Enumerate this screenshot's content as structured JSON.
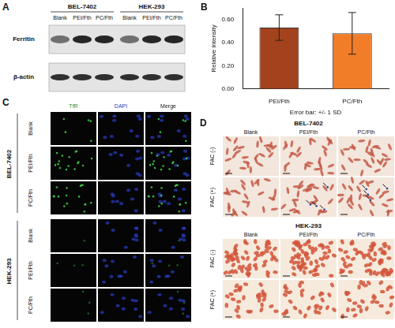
{
  "panels": {
    "A": {
      "label": "A",
      "cell_lines": [
        {
          "name": "BEL-7402",
          "lanes": [
            "Blank",
            "PEI/Fth",
            "PC/Fth"
          ]
        },
        {
          "name": "HEK-293",
          "lanes": [
            "Blank",
            "PEI/Fth",
            "PC/Fth"
          ]
        }
      ],
      "bands": [
        "Ferritin",
        "β-actin"
      ]
    },
    "B": {
      "label": "B"
    },
    "C": {
      "label": "C",
      "columns": [
        "TfR",
        "DAPI",
        "Merge"
      ],
      "groups": [
        {
          "name": "BEL-7402",
          "rows": [
            "Blank",
            "PEI/Fth",
            "PC/Fth"
          ]
        },
        {
          "name": "HEK-293",
          "rows": [
            "Blank",
            "PEI/Fth",
            "PC/Fth"
          ]
        }
      ]
    },
    "D": {
      "label": "D",
      "groups": [
        {
          "name": "BEL-7402",
          "columns": [
            "Blank",
            "PEI/Fth",
            "PC/Fth"
          ],
          "rows": [
            "FAC (-)",
            "FAC (+)"
          ]
        },
        {
          "name": "HEK-293",
          "columns": [
            "Blank",
            "PEI/Fth",
            "PC/Fth"
          ],
          "rows": [
            "FAC (-)",
            "FAC (+)"
          ]
        }
      ]
    }
  },
  "chart_data": {
    "type": "bar",
    "y_label": "Relative intensity",
    "x_label": "Error bar: +/- 1 SD",
    "categories": [
      "PEI/Fth",
      "PC/Fth"
    ],
    "values": [
      0.53,
      0.48
    ],
    "error": [
      0.11,
      0.18
    ],
    "colors": [
      "#a3421c",
      "#f27d28"
    ],
    "ylim": [
      0,
      0.7
    ],
    "yticks": [
      {
        "value": 0,
        "label": "0.00"
      },
      {
        "value": 0.2,
        "label": "0.20"
      },
      {
        "value": 0.4,
        "label": "0.40"
      },
      {
        "value": 0.6,
        "label": "0.60"
      }
    ],
    "grid": false
  }
}
